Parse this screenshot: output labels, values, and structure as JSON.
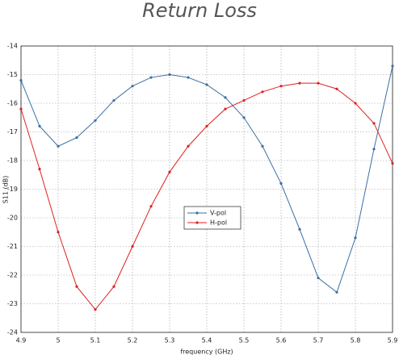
{
  "chart_data": {
    "type": "line",
    "title": "Return Loss",
    "x_label": "frequency (GHz)",
    "y_label": "S11 (dB)",
    "x": [
      4.9,
      4.95,
      5.0,
      5.05,
      5.1,
      5.15,
      5.2,
      5.25,
      5.3,
      5.35,
      5.4,
      5.45,
      5.5,
      5.55,
      5.6,
      5.65,
      5.7,
      5.75,
      5.8,
      5.85,
      5.9
    ],
    "series": [
      {
        "name": "V-pol",
        "color": "#3a6ea5",
        "values": [
          -15.2,
          -16.8,
          -17.5,
          -17.2,
          -16.6,
          -15.9,
          -15.4,
          -15.1,
          -15.0,
          -15.1,
          -15.35,
          -15.8,
          -16.5,
          -17.5,
          -18.8,
          -20.4,
          -22.1,
          -22.6,
          -20.7,
          -17.6,
          -14.7
        ]
      },
      {
        "name": "H-pol",
        "color": "#e02020",
        "values": [
          -16.2,
          -18.3,
          -20.5,
          -22.4,
          -23.2,
          -22.4,
          -21.0,
          -19.6,
          -18.4,
          -17.5,
          -16.8,
          -16.2,
          -15.9,
          -15.6,
          -15.4,
          -15.3,
          -15.3,
          -15.5,
          -16.0,
          -16.7,
          -18.1
        ]
      }
    ],
    "xlim": [
      4.9,
      5.9
    ],
    "ylim": [
      -24,
      -14
    ],
    "xticks": [
      4.9,
      5,
      5.1,
      5.2,
      5.3,
      5.4,
      5.5,
      5.6,
      5.7,
      5.8,
      5.9
    ],
    "yticks": [
      -24,
      -23,
      -22,
      -21,
      -20,
      -19,
      -18,
      -17,
      -16,
      -15,
      -14
    ],
    "grid": true,
    "legend": "center"
  }
}
